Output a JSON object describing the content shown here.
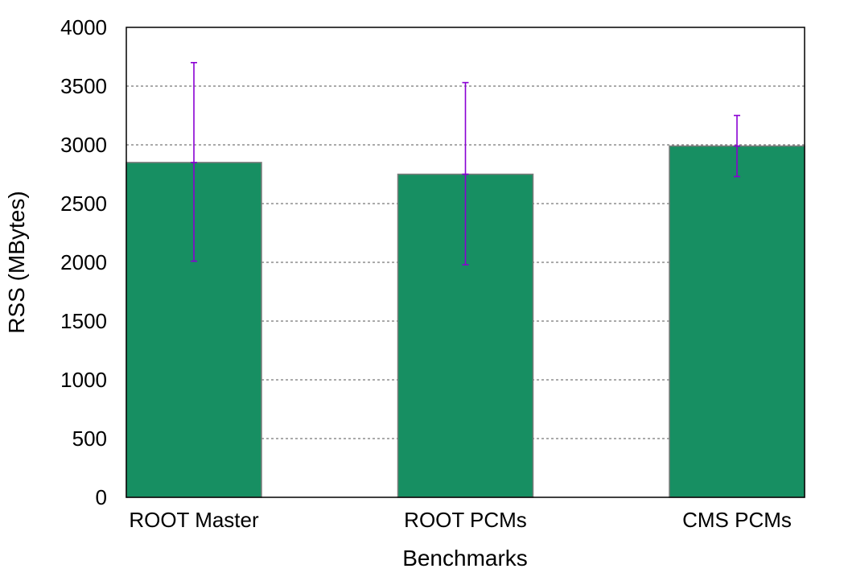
{
  "chart_data": {
    "type": "bar",
    "categories": [
      "ROOT Master",
      "ROOT PCMs",
      "CMS PCMs"
    ],
    "values": [
      2850,
      2750,
      2990
    ],
    "error_bars": [
      {
        "low": 2010,
        "high": 3700
      },
      {
        "low": 1980,
        "high": 3530
      },
      {
        "low": 2730,
        "high": 3250
      }
    ],
    "xlabel": "Benchmarks",
    "ylabel": "RSS (MBytes)",
    "ylim": [
      0,
      4000
    ],
    "yticks": [
      0,
      500,
      1000,
      1500,
      2000,
      2500,
      3000,
      3500,
      4000
    ],
    "grid": true,
    "bar_color": "#178f62",
    "error_color": "#8a00d4",
    "grid_color": "#555555"
  }
}
